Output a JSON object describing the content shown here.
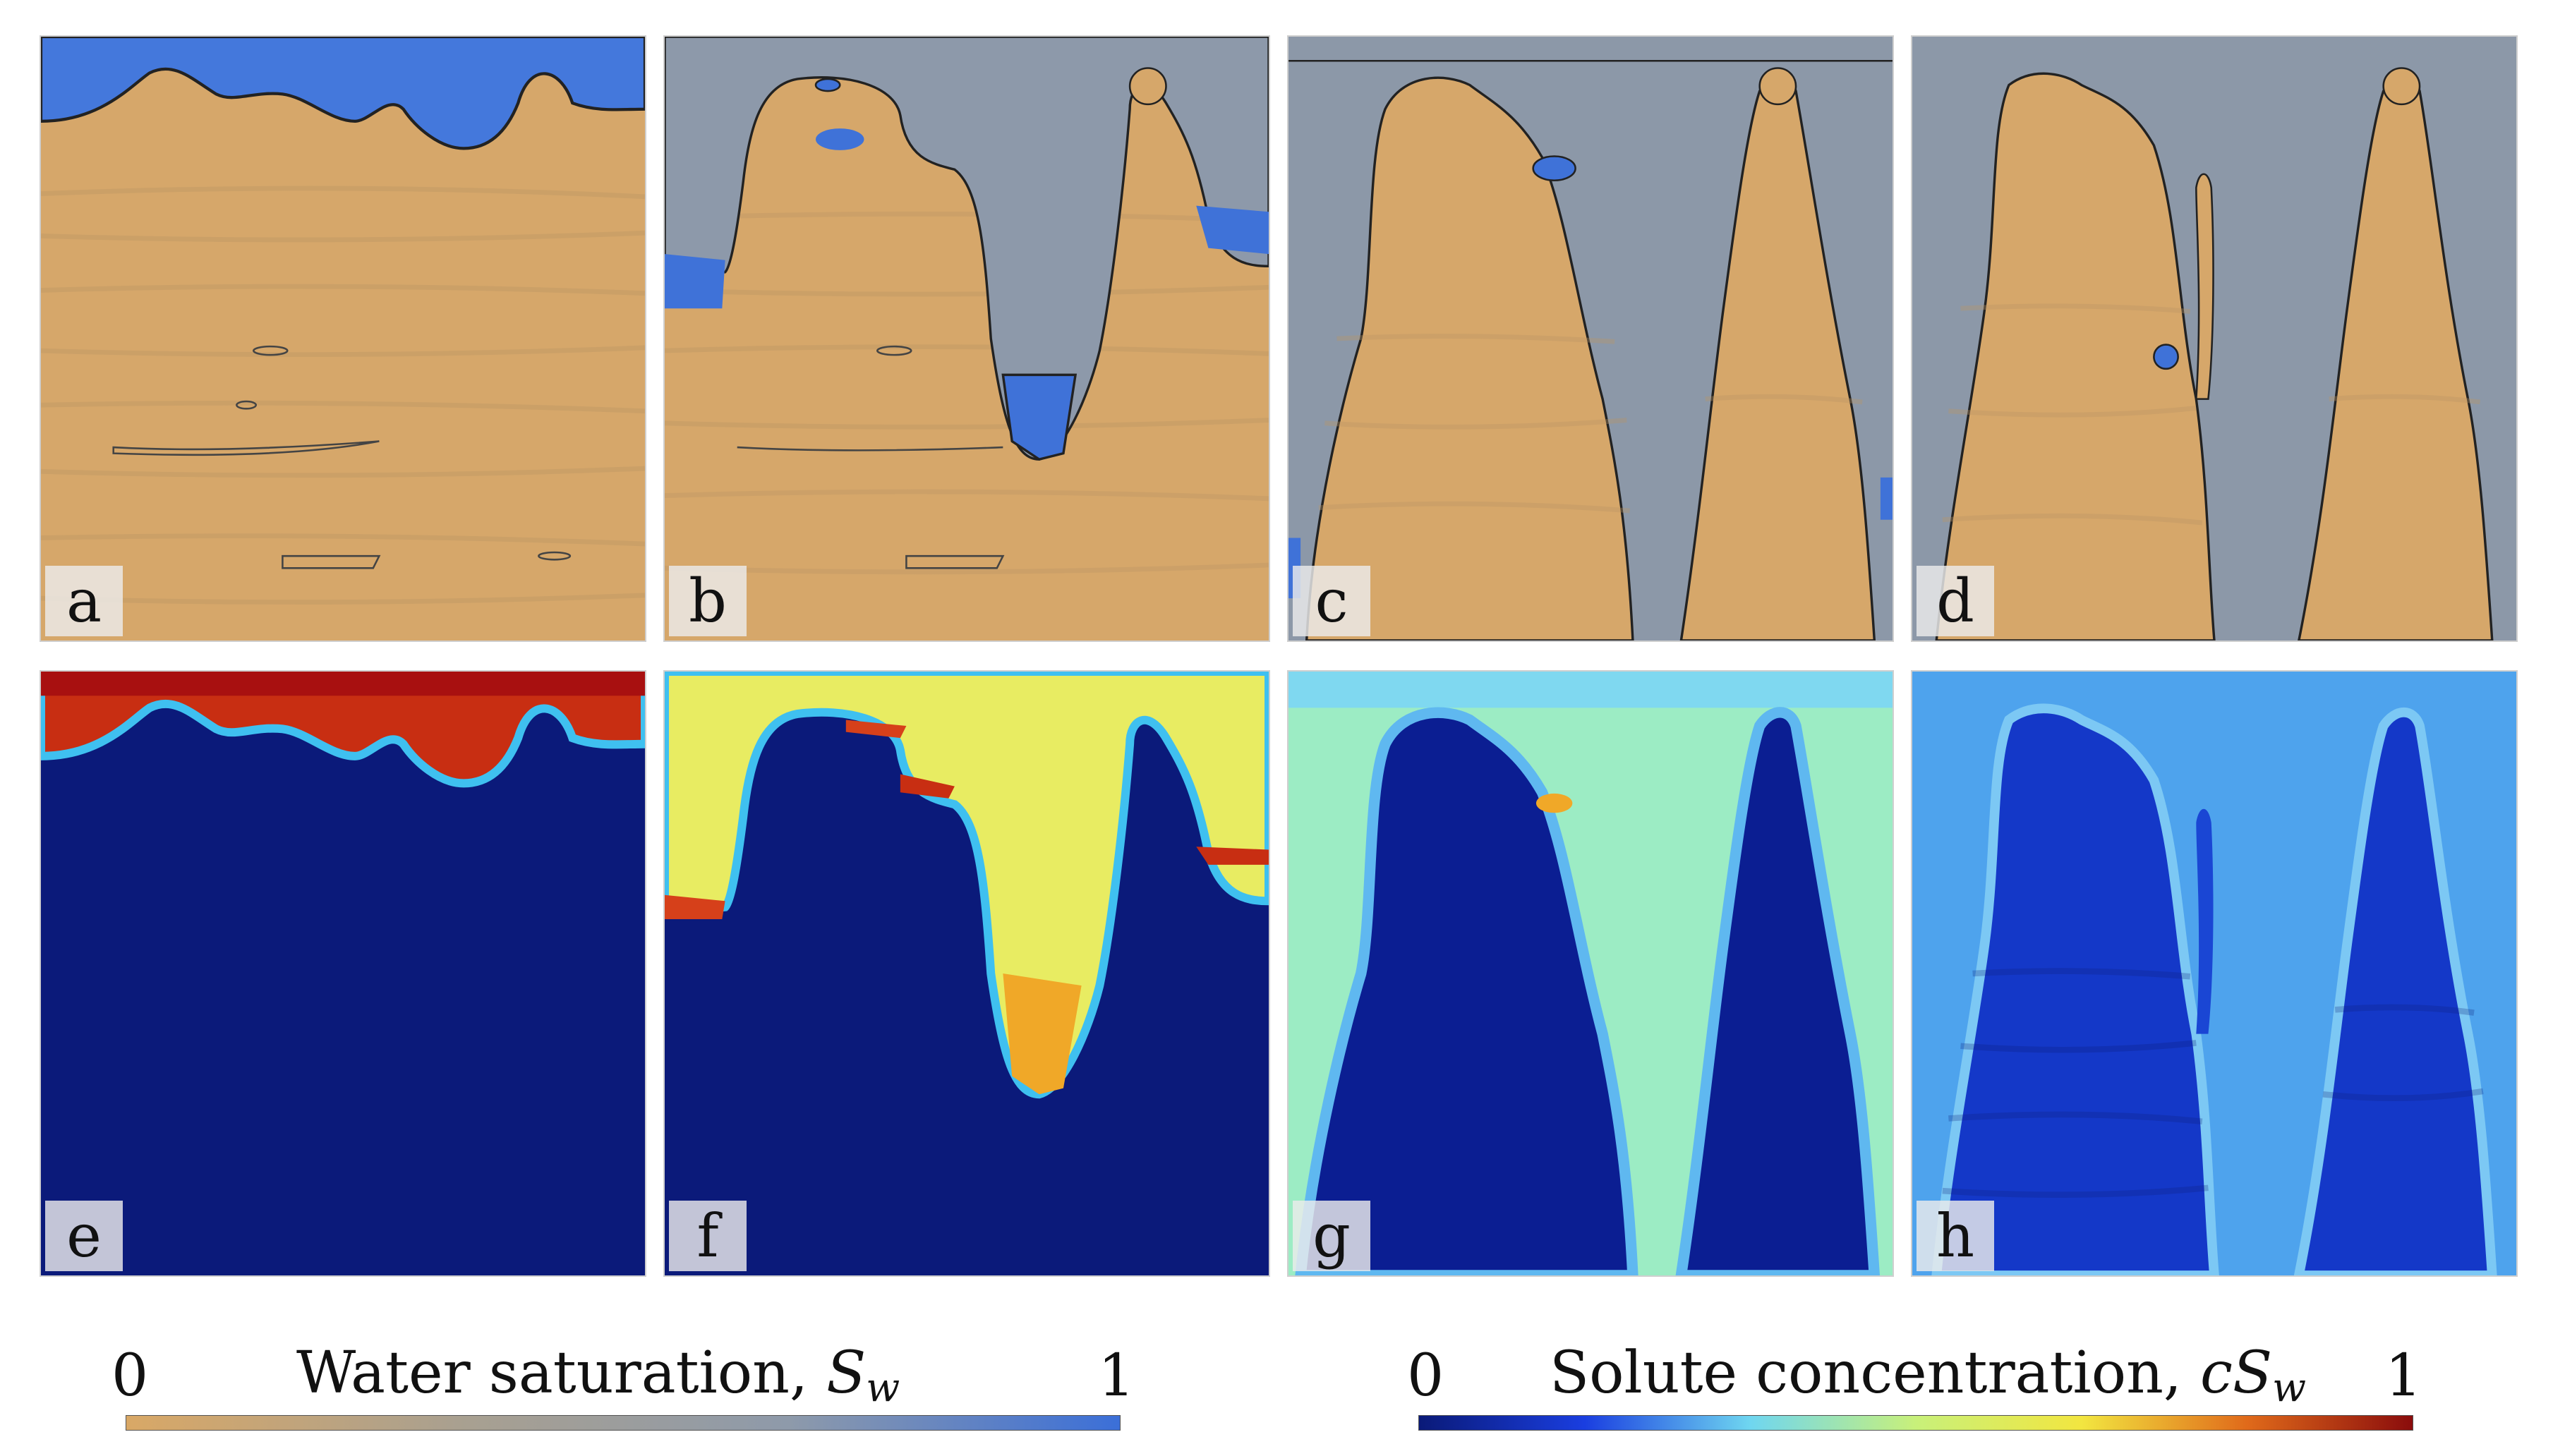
{
  "panels": [
    {
      "id": "a",
      "label": "a",
      "field": "saturation",
      "stage": 0
    },
    {
      "id": "b",
      "label": "b",
      "field": "saturation",
      "stage": 1
    },
    {
      "id": "c",
      "label": "c",
      "field": "saturation",
      "stage": 2
    },
    {
      "id": "d",
      "label": "d",
      "field": "saturation",
      "stage": 3
    },
    {
      "id": "e",
      "label": "e",
      "field": "concentration",
      "stage": 0
    },
    {
      "id": "f",
      "label": "f",
      "field": "concentration",
      "stage": 1
    },
    {
      "id": "g",
      "label": "g",
      "field": "concentration",
      "stage": 2
    },
    {
      "id": "h",
      "label": "h",
      "field": "concentration",
      "stage": 3
    }
  ],
  "colorbars": {
    "saturation": {
      "min": "0",
      "max": "1",
      "title_text": "Water saturation, ",
      "symbol": "S",
      "subscript": "w",
      "colors": [
        "#d9a866",
        "#a9a090",
        "#8e9aaa",
        "#3b6fd8"
      ]
    },
    "concentration": {
      "min": "0",
      "max": "1",
      "title_text": "Solute concentration, ",
      "symbol": "cS",
      "subscript": "w",
      "colors": [
        "#0a1a78",
        "#1a3ee0",
        "#6fd6f0",
        "#c8f07a",
        "#f2e640",
        "#e06a1a",
        "#8a0c0c"
      ]
    }
  }
}
